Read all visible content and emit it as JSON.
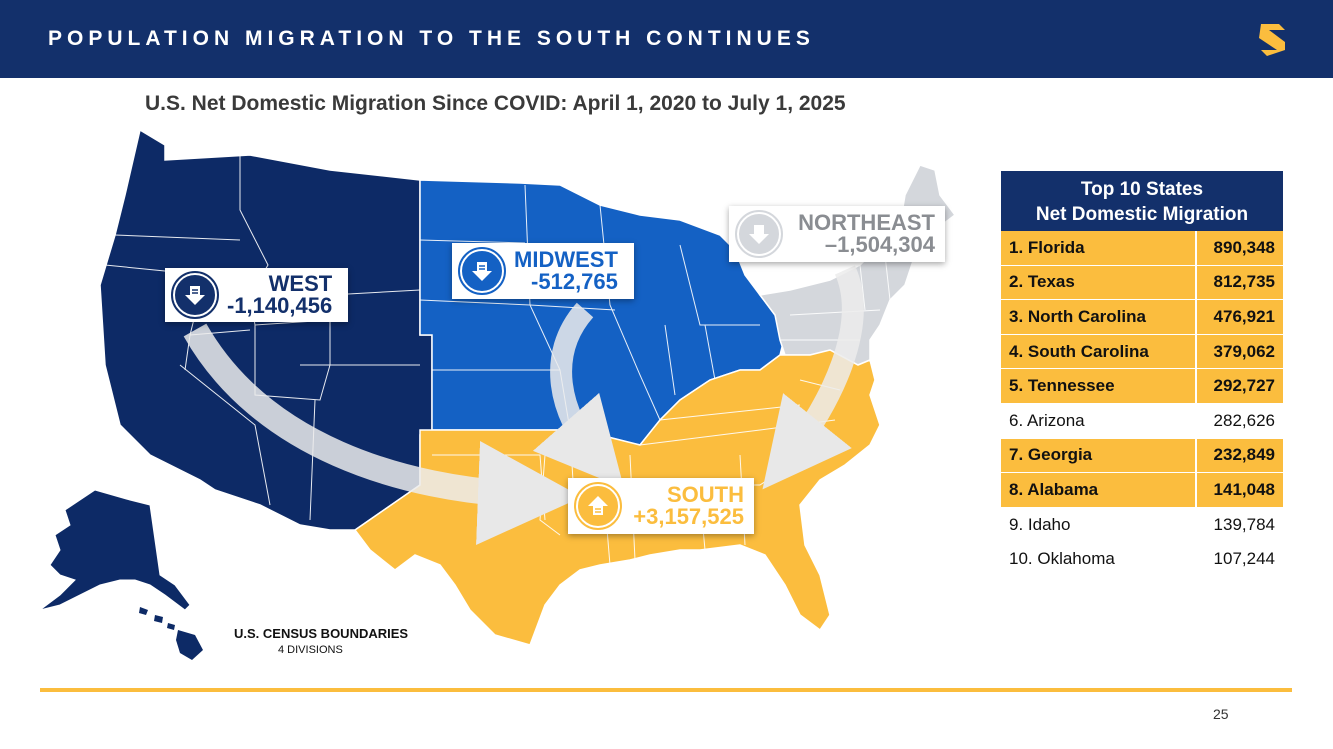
{
  "header": {
    "title": "POPULATION MIGRATION TO THE SOUTH CONTINUES",
    "brand_color": "#13306b",
    "logo_icon": "s-logo-icon"
  },
  "subtitle": "U.S. Net Domestic Migration Since COVID: April 1, 2020 to July 1, 2025",
  "regions": {
    "west": {
      "name": "WEST",
      "value": "-1,140,456",
      "color": "#0d2a66",
      "icon": "down-arrow-icon"
    },
    "midwest": {
      "name": "MIDWEST",
      "value": "-512,765",
      "color": "#1461c4",
      "icon": "down-arrow-icon"
    },
    "northeast": {
      "name": "NORTHEAST",
      "value": "–1,504,304",
      "color": "#d4d7dc",
      "icon": "down-arrow-icon"
    },
    "south": {
      "name": "SOUTH",
      "value": "+3,157,525",
      "color": "#fbbd3e",
      "icon": "up-arrow-icon"
    }
  },
  "legend": {
    "title": "U.S. CENSUS BOUNDARIES",
    "subtitle": "4 DIVISIONS"
  },
  "table": {
    "header_line1": "Top 10 States",
    "header_line2": "Net Domestic Migration",
    "rows": [
      {
        "name": "1. Florida",
        "value": "890,348",
        "south": true
      },
      {
        "name": "2. Texas",
        "value": "812,735",
        "south": true
      },
      {
        "name": "3. North Carolina",
        "value": "476,921",
        "south": true
      },
      {
        "name": "4. South Carolina",
        "value": "379,062",
        "south": true
      },
      {
        "name": "5. Tennessee",
        "value": "292,727",
        "south": true
      },
      {
        "name": "6. Arizona",
        "value": "282,626",
        "south": false
      },
      {
        "name": "7. Georgia",
        "value": "232,849",
        "south": true
      },
      {
        "name": "8. Alabama",
        "value": "141,048",
        "south": true
      },
      {
        "name": "9. Idaho",
        "value": "139,784",
        "south": false
      },
      {
        "name": "10. Oklahoma",
        "value": "107,244",
        "south": false
      }
    ],
    "highlight_color": "#fbbd3e"
  },
  "footer": {
    "page_number": "25",
    "rule_color": "#fbbd3e"
  }
}
